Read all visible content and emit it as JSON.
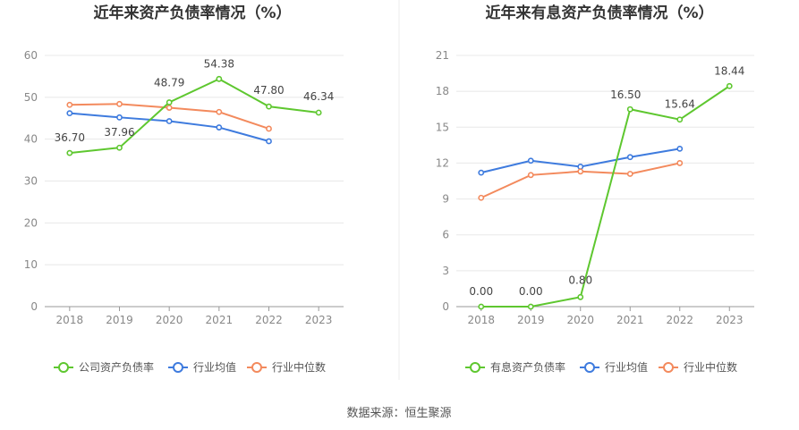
{
  "source_label": "数据来源：恒生聚源",
  "colors": {
    "company": "#5ec72f",
    "avg": "#3e7bde",
    "median": "#f38a5d",
    "grid": "#e8e8e8",
    "axis": "#999999"
  },
  "chart_data": [
    {
      "type": "line",
      "title": "近年来资产负债率情况（%）",
      "categories": [
        "2018",
        "2019",
        "2020",
        "2021",
        "2022",
        "2023"
      ],
      "ylim": [
        0,
        60
      ],
      "yticks": [
        "0",
        "10",
        "20",
        "30",
        "40",
        "50",
        "60"
      ],
      "series": [
        {
          "name": "公司资产负债率",
          "key": "company",
          "values": [
            36.7,
            37.96,
            48.79,
            54.38,
            47.8,
            46.34
          ],
          "labels": [
            "36.70",
            "37.96",
            "48.79",
            "54.38",
            "47.80",
            "46.34"
          ]
        },
        {
          "name": "行业均值",
          "key": "avg",
          "values": [
            46.2,
            45.2,
            44.3,
            42.8,
            39.5,
            null
          ]
        },
        {
          "name": "行业中位数",
          "key": "median",
          "values": [
            48.2,
            48.4,
            47.5,
            46.5,
            42.5,
            null
          ]
        }
      ]
    },
    {
      "type": "line",
      "title": "近年来有息资产负债率情况（%）",
      "categories": [
        "2018",
        "2019",
        "2020",
        "2021",
        "2022",
        "2023"
      ],
      "ylim": [
        0,
        21
      ],
      "yticks": [
        "0",
        "3",
        "6",
        "9",
        "12",
        "15",
        "18",
        "21"
      ],
      "series": [
        {
          "name": "有息资产负债率",
          "key": "company",
          "values": [
            0.0,
            0.0,
            0.8,
            16.5,
            15.64,
            18.44
          ],
          "labels": [
            "0.00",
            "0.00",
            "0.80",
            "16.50",
            "15.64",
            "18.44"
          ]
        },
        {
          "name": "行业均值",
          "key": "avg",
          "values": [
            11.2,
            12.2,
            11.7,
            12.5,
            13.2,
            null
          ]
        },
        {
          "name": "行业中位数",
          "key": "median",
          "values": [
            9.1,
            11.0,
            11.3,
            11.1,
            12.0,
            null
          ]
        }
      ]
    }
  ]
}
